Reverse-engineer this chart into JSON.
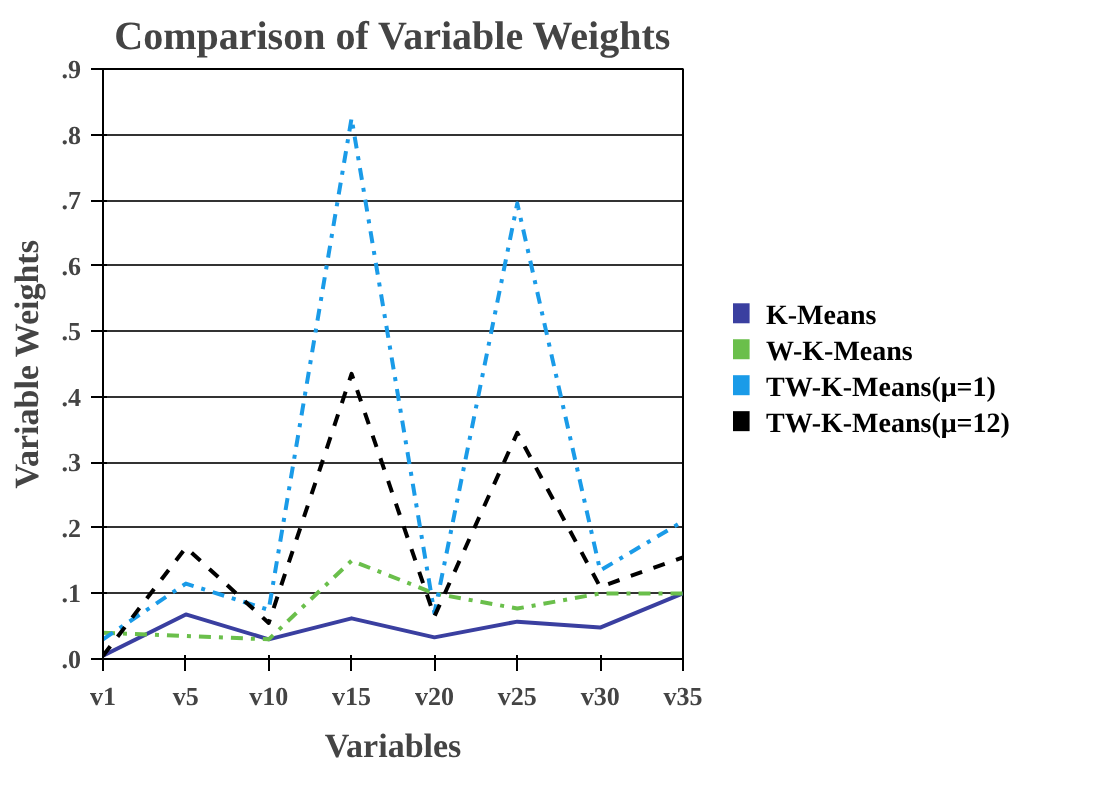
{
  "chart_data": {
    "type": "line",
    "title": "Comparison of Variable Weights",
    "xlabel": "Variables",
    "ylabel": "Variable Weights",
    "categories": [
      "v1",
      "v5",
      "v10",
      "v15",
      "v20",
      "v25",
      "v30",
      "v35"
    ],
    "ylim": [
      0,
      0.9
    ],
    "yticks": [
      {
        "value": 0,
        "label": ".0"
      },
      {
        "value": 0.1,
        "label": ".1"
      },
      {
        "value": 0.2,
        "label": ".2"
      },
      {
        "value": 0.3,
        "label": ".3"
      },
      {
        "value": 0.4,
        "label": ".4"
      },
      {
        "value": 0.5,
        "label": ".5"
      },
      {
        "value": 0.6,
        "label": ".6"
      },
      {
        "value": 0.7,
        "label": ".7"
      },
      {
        "value": 0.8,
        "label": ".8"
      },
      {
        "value": 0.9,
        "label": ".9"
      }
    ],
    "grid": "y",
    "legend": "right",
    "marker": "none",
    "series": [
      {
        "name": "K-Means",
        "color": "#3a3fa0",
        "line_style": "solid",
        "values": [
          0.005,
          0.068,
          0.03,
          0.062,
          0.033,
          0.057,
          0.048,
          0.1
        ]
      },
      {
        "name": "W-K-Means",
        "color": "#6abf4b",
        "line_style": "dashdot",
        "values": [
          0.04,
          0.035,
          0.03,
          0.15,
          0.1,
          0.077,
          0.1,
          0.1
        ]
      },
      {
        "name": "TW-K-Means(μ=1)",
        "color": "#1a9be8",
        "line_style": "dashdot",
        "values": [
          0.03,
          0.115,
          0.075,
          0.825,
          0.07,
          0.695,
          0.135,
          0.21
        ]
      },
      {
        "name": "TW-K-Means(μ=12)",
        "color": "#000000",
        "line_style": "dashed",
        "values": [
          0.005,
          0.17,
          0.055,
          0.435,
          0.065,
          0.345,
          0.11,
          0.155
        ]
      }
    ]
  }
}
